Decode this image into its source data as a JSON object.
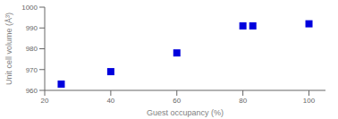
{
  "chart_data": {
    "type": "scatter",
    "x": [
      25,
      40,
      60,
      80,
      83,
      100
    ],
    "y": [
      963,
      969,
      978,
      991,
      991,
      992
    ],
    "xlabel": "Guest occupancy (%)",
    "ylabel": "Unit cell volume (Å³)",
    "xlim": [
      20,
      105
    ],
    "ylim": [
      960,
      1000
    ],
    "xticks": [
      20,
      40,
      60,
      80,
      100
    ],
    "yticks": [
      960,
      970,
      980,
      990,
      1000
    ],
    "color": "#0000dd",
    "marker": "square",
    "grid": false
  }
}
